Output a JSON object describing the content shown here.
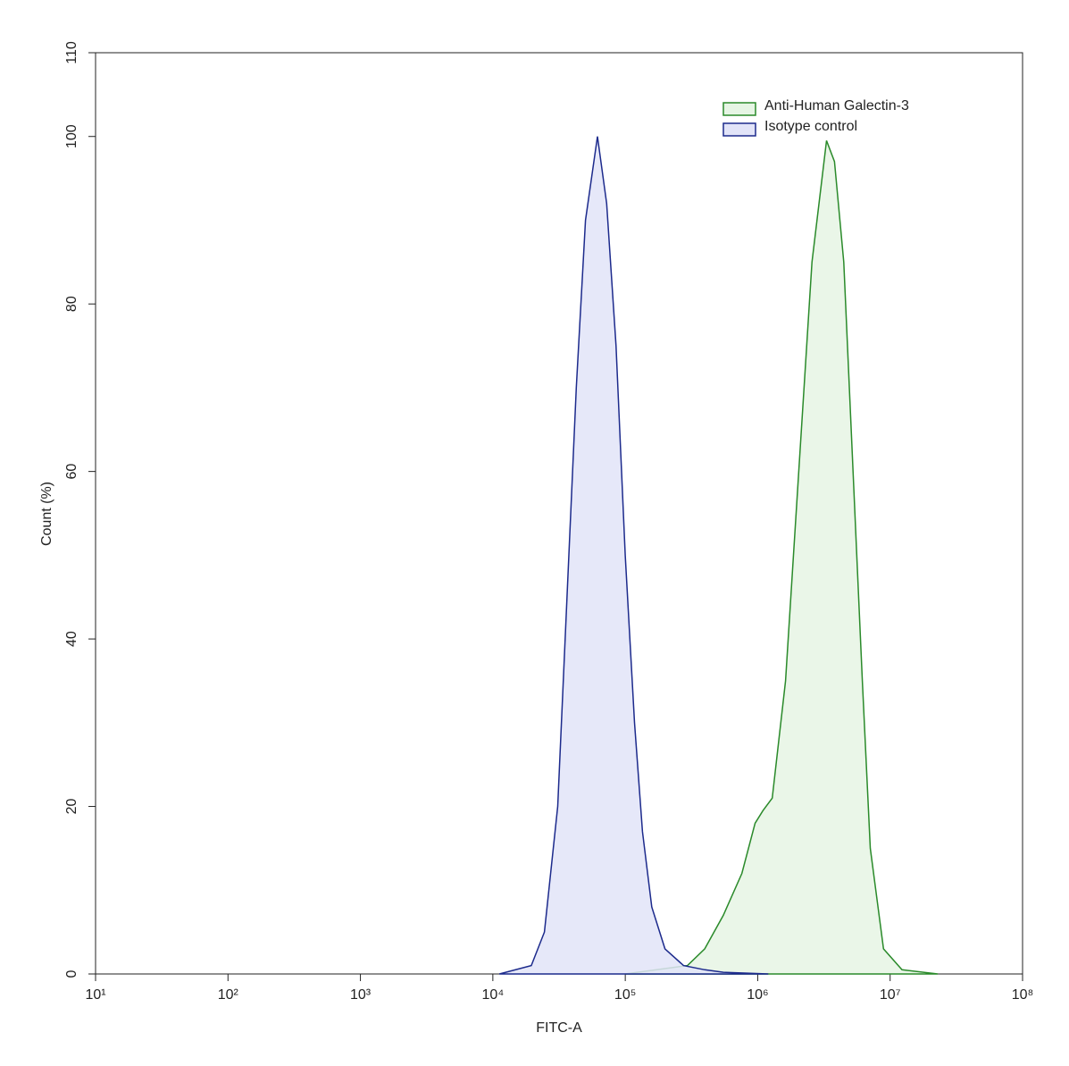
{
  "chart_data": {
    "type": "area",
    "x_label": "FITC-A",
    "y_label": "Count  (%)",
    "xscale": "log",
    "xlim": [
      10,
      100000000
    ],
    "ylim": [
      0,
      110
    ],
    "xticks": [
      {
        "value": 10,
        "label": "10¹"
      },
      {
        "value": 100,
        "label": "10²"
      },
      {
        "value": 1000,
        "label": "10³"
      },
      {
        "value": 10000,
        "label": "10⁴"
      },
      {
        "value": 100000,
        "label": "10⁵"
      },
      {
        "value": 1000000,
        "label": "10⁶"
      },
      {
        "value": 10000000,
        "label": "10⁷"
      },
      {
        "value": 100000000,
        "label": "10⁸"
      }
    ],
    "yticks": [
      0,
      20,
      40,
      60,
      80,
      100,
      110
    ],
    "legend": "upper right",
    "series": [
      {
        "name": "Anti-Human Galectin-3",
        "color": "#2a8a2a",
        "fill": "#e6f5e4",
        "x": [
          100000,
          295000,
          398000,
          550000,
          759000,
          955000,
          1096000,
          1288000,
          1622000,
          2042000,
          2570000,
          3311000,
          3802000,
          4467000,
          5248000,
          6166000,
          7079000,
          8913000,
          12300000,
          22900000
        ],
        "values": [
          0,
          1,
          3,
          7,
          12,
          18,
          19.5,
          21,
          35,
          60,
          85,
          99.5,
          97,
          85,
          60,
          35,
          15,
          3,
          0.5,
          0
        ]
      },
      {
        "name": "Isotype control",
        "color": "#1c2a8c",
        "fill": "#e2e4f8",
        "x": [
          11200,
          19500,
          24500,
          30900,
          36300,
          42700,
          50100,
          61700,
          72400,
          85100,
          100000,
          117500,
          134900,
          158500,
          199500,
          275400,
          398100,
          549500,
          1202000
        ],
        "values": [
          0,
          1,
          5,
          20,
          45,
          70,
          90,
          100,
          92,
          75,
          50,
          30,
          17,
          8,
          3,
          1,
          0.5,
          0.2,
          0
        ]
      }
    ]
  }
}
